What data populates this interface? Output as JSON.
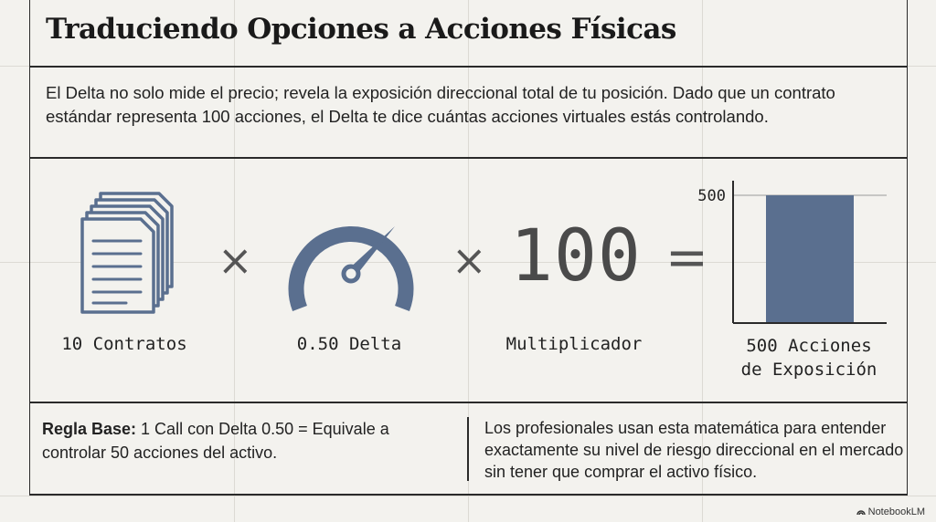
{
  "title": "Traduciendo Opciones a Acciones Físicas",
  "intro": "El Delta no solo mide el precio; revela la exposición direccional total de tu posición. Dado que un contrato estándar representa 100 acciones, el Delta te dice cuántas acciones virtuales estás controlando.",
  "equation": {
    "contracts_label": "10 Contratos",
    "delta_label": "0.50 Delta",
    "delta_value": 0.5,
    "times_symbol": "×",
    "multiplier_value": "100",
    "multiplier_label": "Multiplicador",
    "equals_symbol": "=",
    "result_line1": "500 Acciones",
    "result_line2": "de Exposición"
  },
  "chart_data": {
    "type": "bar",
    "categories": [
      ""
    ],
    "values": [
      500
    ],
    "ylim": [
      0,
      500
    ],
    "yticks": [
      "500"
    ],
    "bar_color": "#5a6f8f"
  },
  "footer": {
    "rule_prefix": "Regla Base:",
    "rule_text": " 1 Call con Delta 0.50 = Equivale a controlar 50 acciones del activo.",
    "pro_text": "Los profesionales usan esta matemática para entender exactamente su nivel de riesgo direccional en el mercado sin tener que comprar el activo físico."
  },
  "brand": "NotebookLM",
  "colors": {
    "accent": "#5a6f8f",
    "ink": "#1e1e1e",
    "grid": "#dcdad4"
  }
}
